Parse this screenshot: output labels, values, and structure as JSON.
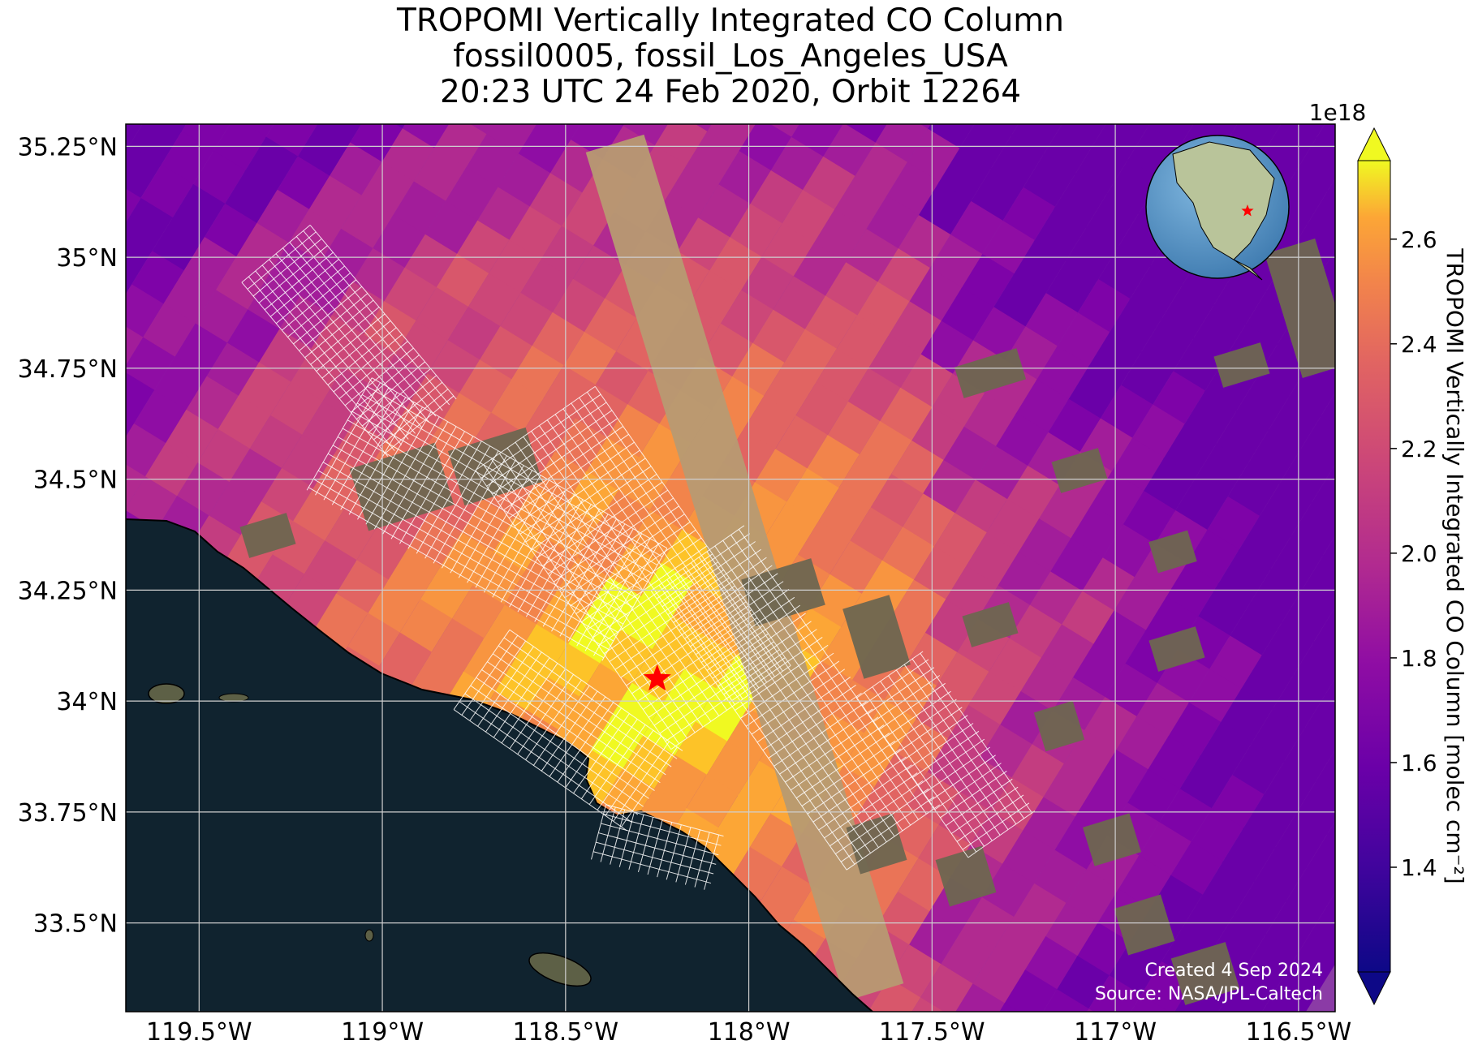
{
  "title": {
    "line1": "TROPOMI Vertically Integrated CO Column",
    "line2": "fossil0005, fossil_Los_Angeles_USA",
    "line3": "20:23 UTC 24 Feb 2020, Orbit 12264"
  },
  "map": {
    "lon_range": [
      -119.7,
      -116.4
    ],
    "lat_range": [
      33.3,
      35.3
    ],
    "lon_ticks": [
      -119.5,
      -119.0,
      -118.5,
      -118.0,
      -117.5,
      -117.0,
      -116.5
    ],
    "lat_ticks": [
      33.5,
      33.75,
      34.0,
      34.25,
      34.5,
      34.75,
      35.0,
      35.25
    ],
    "lon_tick_labels": [
      "119.5°W",
      "119°W",
      "118.5°W",
      "118°W",
      "117.5°W",
      "117°W",
      "116.5°W"
    ],
    "lat_tick_labels": [
      "33.5°N",
      "33.75°N",
      "34°N",
      "34.25°N",
      "34.5°N",
      "34.75°N",
      "35°N",
      "35.25°N"
    ],
    "target": {
      "name": "fossil_Los_Angeles_USA",
      "lon": -118.25,
      "lat": 34.05,
      "marker": "red-star"
    },
    "ocean_color": "#10232f",
    "land_color": "#6e6650",
    "gridline_color": "#cfcfcf"
  },
  "colorbar": {
    "label": "TROPOMI Vertically Integrated CO Column [molec cm⁻²]",
    "exponent_label": "1e18",
    "range": [
      1.2,
      2.75
    ],
    "ticks": [
      1.4,
      1.6,
      1.8,
      2.0,
      2.2,
      2.4,
      2.6
    ],
    "tick_labels": [
      "1.4",
      "1.6",
      "1.8",
      "2.0",
      "2.2",
      "2.4",
      "2.6"
    ],
    "colormap": "plasma",
    "extend": "both"
  },
  "globe_inset": {
    "content": "North America globe with red star at Los Angeles",
    "icon": "globe-icon"
  },
  "credits": {
    "created": "Created 4 Sep 2024",
    "source": "Source: NASA/JPL-Caltech"
  }
}
